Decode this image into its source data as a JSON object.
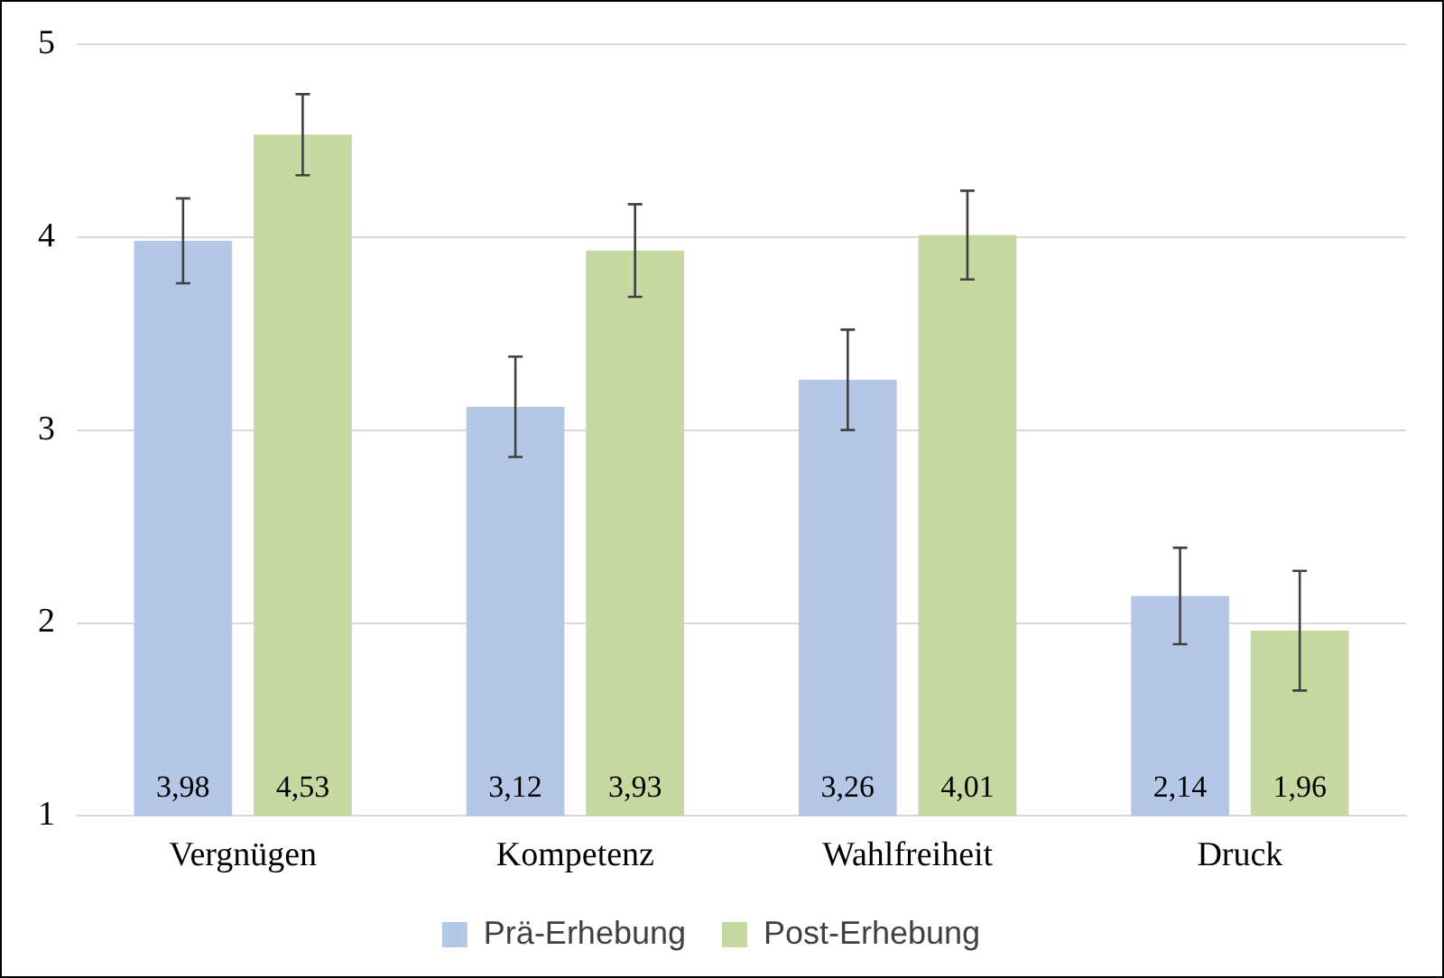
{
  "chart_data": {
    "type": "bar",
    "categories": [
      "Vergnügen",
      "Kompetenz",
      "Wahlfreiheit",
      "Druck"
    ],
    "series": [
      {
        "name": "Prä-Erhebung",
        "color": "#b4c7e7",
        "values": [
          3.98,
          3.12,
          3.26,
          2.14
        ],
        "value_labels": [
          "3,98",
          "3,12",
          "3,26",
          "2,14"
        ],
        "errors": [
          0.22,
          0.26,
          0.26,
          0.25
        ]
      },
      {
        "name": "Post-Erhebung",
        "color": "#c5d9a0",
        "values": [
          4.53,
          3.93,
          4.01,
          1.96
        ],
        "value_labels": [
          "4,53",
          "3,93",
          "4,01",
          "1,96"
        ],
        "errors": [
          0.21,
          0.24,
          0.23,
          0.31
        ]
      }
    ],
    "ylim": [
      1,
      5
    ],
    "yticks": [
      1,
      2,
      3,
      4,
      5
    ],
    "grid": "y",
    "legend": "bottom"
  }
}
